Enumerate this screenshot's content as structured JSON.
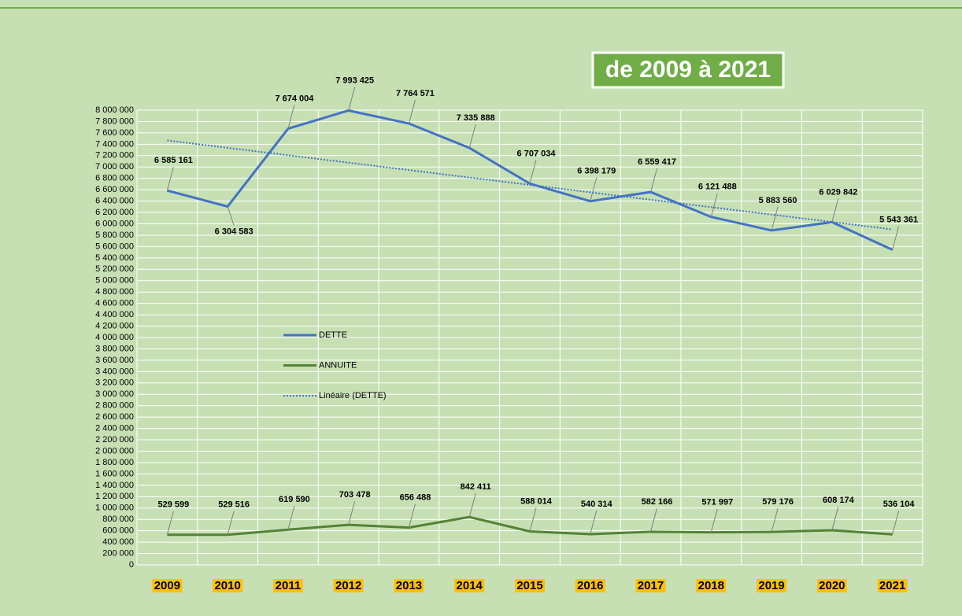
{
  "chart_data": {
    "type": "line",
    "title": "de 2009 à 2021",
    "categories": [
      "2009",
      "2010",
      "2011",
      "2012",
      "2013",
      "2014",
      "2015",
      "2016",
      "2017",
      "2018",
      "2019",
      "2020",
      "2021"
    ],
    "series": [
      {
        "name": "DETTE",
        "color": "#4472c4",
        "values": [
          6585161,
          6304583,
          7674004,
          7993425,
          7764571,
          7335888,
          6707034,
          6398179,
          6559417,
          6121488,
          5883560,
          6029842,
          5543361
        ],
        "value_labels": [
          "6 585 161",
          "6 304 583",
          "7 674 004",
          "7 993 425",
          "7 764 571",
          "7 335 888",
          "6 707 034",
          "6 398 179",
          "6 559 417",
          "6 121 488",
          "5 883 560",
          "6 029 842",
          "5 543 361"
        ]
      },
      {
        "name": "ANNUITE",
        "color": "#548235",
        "values": [
          529599,
          529516,
          619590,
          703478,
          656488,
          842411,
          588014,
          540314,
          582166,
          571997,
          579176,
          608174,
          536104
        ],
        "value_labels": [
          "529 599",
          "529 516",
          "619 590",
          "703 478",
          "656 488",
          "842 411",
          "588 014",
          "540 314",
          "582 166",
          "571 997",
          "579 176",
          "608 174",
          "536 104"
        ]
      }
    ],
    "trendline": {
      "name": "Linéaire (DETTE)",
      "series": 0,
      "color": "#4472c4"
    },
    "ylim": [
      0,
      8000000
    ],
    "yticks": [
      0,
      {
        "value": 200000,
        "label": "200 000"
      },
      {
        "value": 400000,
        "label": "400 000"
      },
      {
        "value": 600000,
        "label": "600 000"
      },
      {
        "value": 800000,
        "label": "800 000"
      },
      {
        "value": 1000000,
        "label": "1 000 000"
      },
      {
        "value": 1200000,
        "label": "1 200 000"
      },
      {
        "value": 1400000,
        "label": "1 400 000"
      },
      {
        "value": 1600000,
        "label": "1 600 000"
      },
      {
        "value": 1800000,
        "label": "1 800 000"
      },
      {
        "value": 2000000,
        "label": "2 000 000"
      },
      {
        "value": 2200000,
        "label": "2 200 000"
      },
      {
        "value": 2400000,
        "label": "2 400 000"
      },
      {
        "value": 2600000,
        "label": "2 600 000"
      },
      {
        "value": 2800000,
        "label": "2 800 000"
      },
      {
        "value": 3000000,
        "label": "3 000 000"
      },
      {
        "value": 3200000,
        "label": "3 200 000"
      },
      {
        "value": 3400000,
        "label": "3 400 000"
      },
      {
        "value": 3600000,
        "label": "3 600 000"
      },
      {
        "value": 3800000,
        "label": "3 800 000"
      },
      {
        "value": 4000000,
        "label": "4 000 000"
      },
      {
        "value": 4200000,
        "label": "4 200 000"
      },
      {
        "value": 4400000,
        "label": "4 400 000"
      },
      {
        "value": 4600000,
        "label": "4 600 000"
      },
      {
        "value": 4800000,
        "label": "4 800 000"
      },
      {
        "value": 5000000,
        "label": "5 000 000"
      },
      {
        "value": 5200000,
        "label": "5 200 000"
      },
      {
        "value": 5400000,
        "label": "5 400 000"
      },
      {
        "value": 5600000,
        "label": "5 600 000"
      },
      {
        "value": 5800000,
        "label": "5 800 000"
      },
      {
        "value": 6000000,
        "label": "6 000 000"
      },
      {
        "value": 6200000,
        "label": "6 200 000"
      },
      {
        "value": 6400000,
        "label": "6 400 000"
      },
      {
        "value": 6600000,
        "label": "6 600 000"
      },
      {
        "value": 6800000,
        "label": "6 800 000"
      },
      {
        "value": 7000000,
        "label": "7 000 000"
      },
      {
        "value": 7200000,
        "label": "7 200 000"
      },
      {
        "value": 7400000,
        "label": "7 400 000"
      },
      {
        "value": 7600000,
        "label": "7 600 000"
      },
      {
        "value": 7800000,
        "label": "7 800 000"
      },
      {
        "value": 8000000,
        "label": "8 000 000"
      }
    ],
    "grid": true
  }
}
